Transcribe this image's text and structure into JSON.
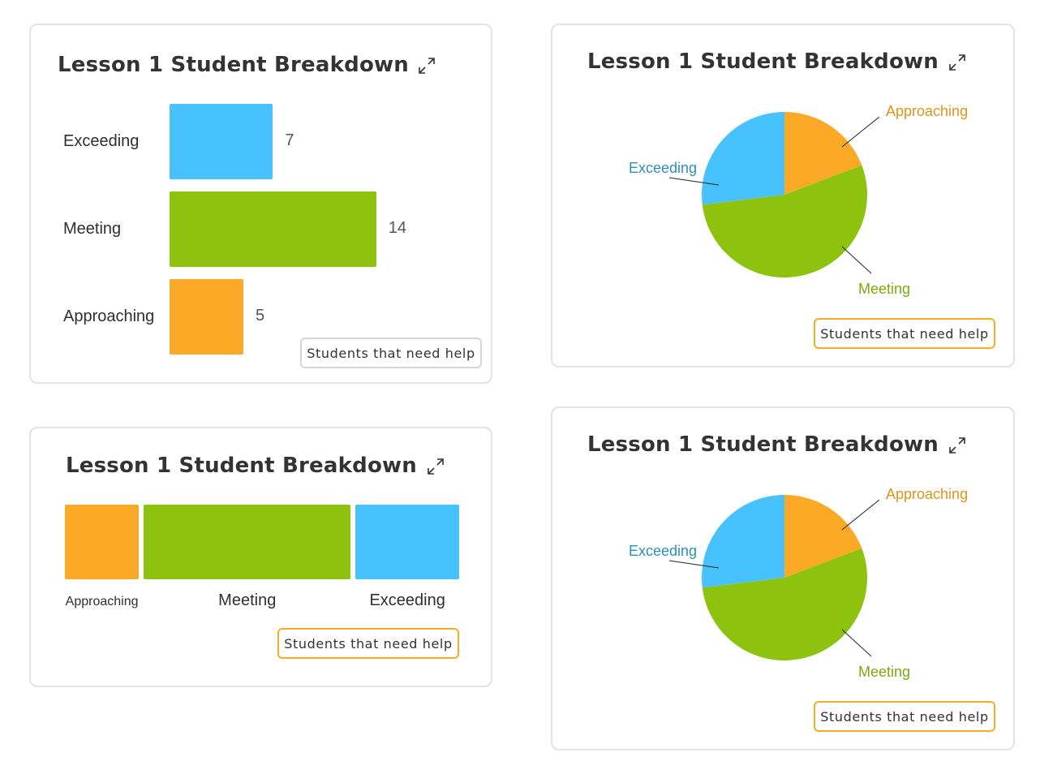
{
  "colors": {
    "exceeding": "#47c2ff",
    "meeting": "#8dc30e",
    "approaching": "#fba926",
    "exceeding_text": "#2d8fb8",
    "meeting_text": "#7aab0c",
    "approaching_text": "#e0931b"
  },
  "cards": {
    "bar_card": {
      "title": "Lesson 1 Student Breakdown",
      "help_label": "Students that need help",
      "expand_icon": "expand-icon"
    },
    "pie_card_1": {
      "title": "Lesson 1 Student Breakdown",
      "help_label": "Students that need help",
      "expand_icon": "expand-icon"
    },
    "stacked_card": {
      "title": "Lesson 1 Student Breakdown",
      "help_label": "Students that need help",
      "expand_icon": "expand-icon"
    },
    "pie_card_2": {
      "title": "Lesson 1 Student Breakdown",
      "help_label": "Students that need help",
      "expand_icon": "expand-icon"
    }
  },
  "chart_data": [
    {
      "type": "bar",
      "orientation": "horizontal",
      "title": "Lesson 1 Student Breakdown",
      "categories": [
        "Exceeding",
        "Meeting",
        "Approaching"
      ],
      "values": [
        7,
        14,
        5
      ],
      "show_values": true,
      "grid": false
    },
    {
      "type": "pie",
      "title": "Lesson 1 Student Breakdown",
      "labels": [
        "Approaching",
        "Meeting",
        "Exceeding"
      ],
      "values": [
        5,
        14,
        7
      ]
    },
    {
      "type": "bar",
      "orientation": "stacked-horizontal",
      "title": "Lesson 1 Student Breakdown",
      "categories": [
        "Approaching",
        "Meeting",
        "Exceeding"
      ],
      "values": [
        5,
        14,
        7
      ]
    },
    {
      "type": "pie",
      "title": "Lesson 1 Student Breakdown",
      "labels": [
        "Approaching",
        "Meeting",
        "Exceeding"
      ],
      "values": [
        5,
        14,
        7
      ]
    }
  ]
}
